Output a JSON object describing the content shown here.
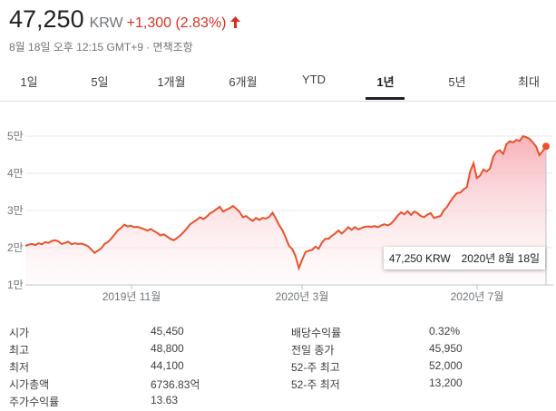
{
  "header": {
    "price": "47,250",
    "currency": "KRW",
    "change": "+1,300 (2.83%)",
    "direction_icon": "arrow-up-icon",
    "timestamp": "8월 18일 오후 12:15 GMT+9 · 면책조항"
  },
  "tabs": [
    {
      "label": "1일"
    },
    {
      "label": "5일"
    },
    {
      "label": "1개월"
    },
    {
      "label": "6개월"
    },
    {
      "label": "YTD"
    },
    {
      "label": "1년"
    },
    {
      "label": "5년"
    },
    {
      "label": "최대"
    }
  ],
  "active_tab": "1년",
  "chart_data": {
    "type": "area",
    "y_ticks": [
      "5만",
      "4만",
      "3만",
      "2만",
      "1만"
    ],
    "x_ticks": [
      "2019년 11월",
      "2020년 3월",
      "2020년 7월"
    ],
    "ylim": [
      10000,
      50000
    ],
    "series": [
      {
        "values": [
          20500,
          20800,
          21000,
          20700,
          21200,
          20900,
          21500,
          21300,
          21800,
          22000,
          21700,
          21000,
          21300,
          21600,
          20900,
          21200,
          21000,
          21100,
          20800,
          20400,
          19500,
          18600,
          19200,
          19800,
          21000,
          21500,
          22400,
          23500,
          24600,
          25300,
          26200,
          25700,
          25900,
          25500,
          25600,
          25300,
          25000,
          24600,
          25000,
          24500,
          24000,
          23300,
          23600,
          23000,
          22400,
          22000,
          22600,
          23300,
          24200,
          25200,
          26300,
          26900,
          27500,
          28200,
          27700,
          28300,
          29200,
          29700,
          30400,
          31000,
          29700,
          30200,
          30600,
          31200,
          30500,
          29600,
          28200,
          28500,
          27800,
          27200,
          28000,
          27500,
          28000,
          27800,
          28300,
          29400,
          27900,
          26100,
          24700,
          22700,
          20500,
          19600,
          17700,
          14500,
          16800,
          18800,
          19200,
          19400,
          20300,
          19700,
          21400,
          22400,
          22400,
          23200,
          23800,
          24600,
          23800,
          24600,
          25500,
          24800,
          25500,
          24900,
          25300,
          25600,
          25700,
          25600,
          25800,
          25500,
          26000,
          26300,
          26000,
          26500,
          27500,
          28600,
          29500,
          29000,
          29800,
          28800,
          29700,
          29300,
          28500,
          28200,
          28900,
          29300,
          28000,
          28300,
          28500,
          30100,
          31000,
          32500,
          33700,
          34700,
          34800,
          35700,
          36300,
          40500,
          42700,
          38700,
          39400,
          41000,
          40500,
          41300,
          44500,
          45800,
          46200,
          45200,
          47800,
          48600,
          48300,
          49000,
          48700,
          50000,
          49700,
          49300,
          48300,
          47200,
          44900,
          46000,
          47250
        ],
        "color": "#e8512c"
      }
    ],
    "tooltip": {
      "price": "47,250 KRW",
      "date": "2020년 8월 18일"
    }
  },
  "stats": {
    "left": [
      {
        "label": "시가",
        "value": "45,450"
      },
      {
        "label": "최고",
        "value": "48,800"
      },
      {
        "label": "최저",
        "value": "44,100"
      },
      {
        "label": "시가총액",
        "value": "6736.83억"
      },
      {
        "label": "주가수익률",
        "value": "13.63"
      }
    ],
    "right": [
      {
        "label": "배당수익률",
        "value": "0.32%"
      },
      {
        "label": "전일 종가",
        "value": "45,950"
      },
      {
        "label": "52-주 최고",
        "value": "52,000"
      },
      {
        "label": "52-주 최저",
        "value": "13,200"
      }
    ]
  }
}
